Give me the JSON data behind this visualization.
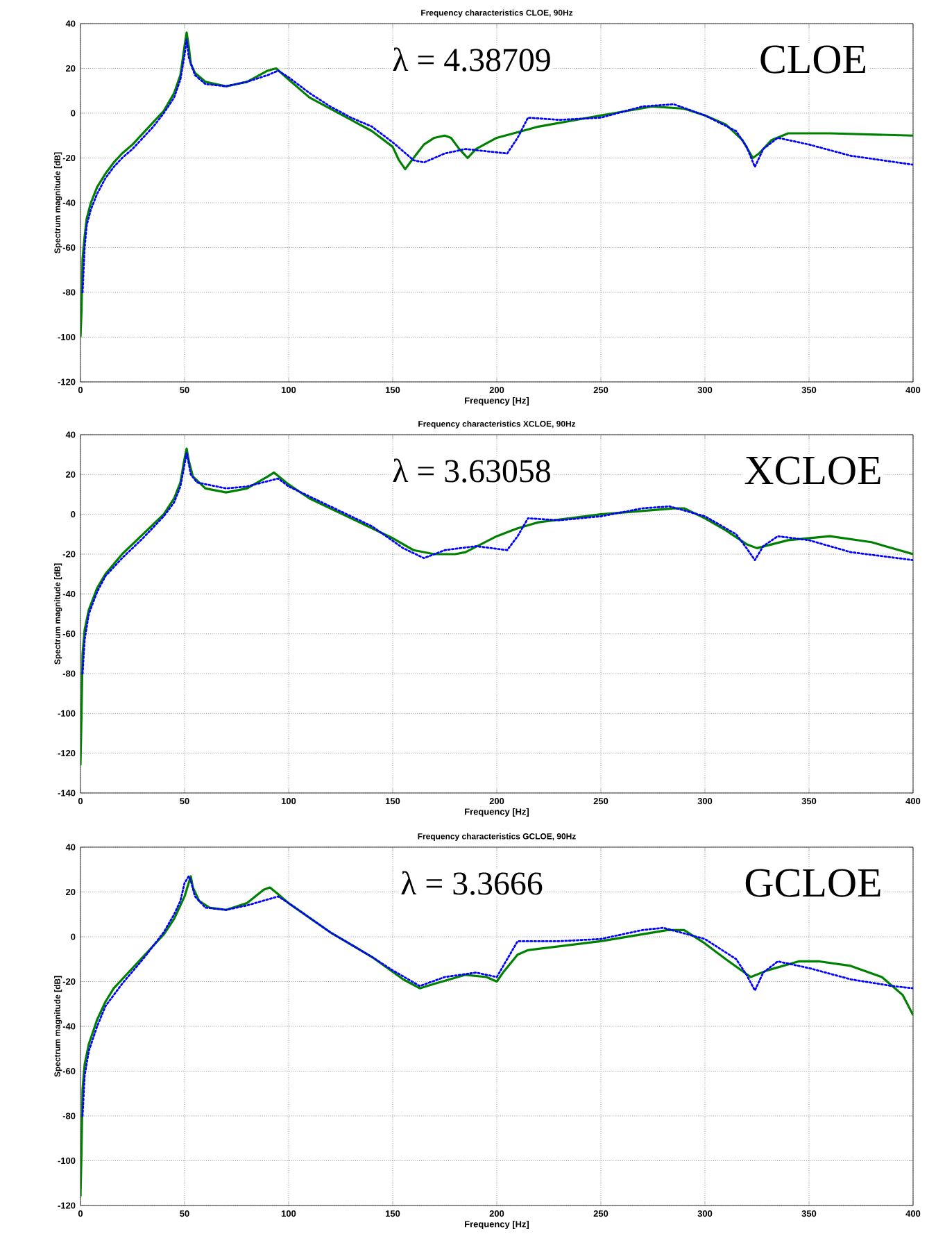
{
  "chart_data": [
    {
      "type": "line",
      "title": "Frequency characteristics CLOE, 90Hz",
      "xlabel": "Frequency [Hz]",
      "ylabel": "Spectrum magnitude [dB]",
      "annotations": [
        "λ = 4.38709",
        "CLOE"
      ],
      "xlim": [
        0,
        400
      ],
      "ylim": [
        -120,
        40
      ],
      "xticks": [
        0,
        50,
        100,
        150,
        200,
        250,
        300,
        350,
        400
      ],
      "yticks": [
        -120,
        -100,
        -80,
        -60,
        -40,
        -20,
        0,
        20,
        40
      ],
      "grid": true,
      "series": [
        {
          "color": "#0000ff",
          "line_style": "dotted",
          "x": [
            1,
            2,
            3,
            5,
            8,
            12,
            16,
            20,
            25,
            30,
            35,
            40,
            45,
            48,
            50,
            51,
            52,
            55,
            60,
            70,
            80,
            90,
            95,
            100,
            110,
            120,
            130,
            140,
            150,
            160,
            165,
            175,
            185,
            195,
            205,
            210,
            215,
            230,
            250,
            270,
            285,
            300,
            315,
            320,
            324,
            328,
            335,
            350,
            370,
            400
          ],
          "values": [
            -80,
            -60,
            -50,
            -43,
            -36,
            -29,
            -24,
            -20,
            -16,
            -11,
            -6,
            0,
            7,
            15,
            26,
            33,
            25,
            17,
            13,
            12,
            14,
            17,
            19,
            16,
            9,
            3,
            -2,
            -6,
            -13,
            -21,
            -22,
            -18,
            -16,
            -17,
            -18,
            -11,
            -2,
            -3,
            -2,
            3,
            4,
            -1,
            -8,
            -15,
            -24,
            -16,
            -11,
            -14,
            -19,
            -23
          ]
        },
        {
          "color": "#008000",
          "line_style": "solid",
          "x": [
            0,
            0.5,
            1,
            2,
            3,
            5,
            8,
            12,
            16,
            20,
            25,
            30,
            35,
            40,
            45,
            48,
            50,
            51,
            52,
            53,
            55,
            60,
            70,
            80,
            90,
            94,
            100,
            110,
            120,
            130,
            140,
            150,
            153,
            156,
            160,
            165,
            170,
            175,
            178,
            182,
            186,
            190,
            200,
            220,
            250,
            275,
            290,
            300,
            310,
            318,
            323,
            326,
            332,
            340,
            360,
            400
          ],
          "values": [
            -100,
            -88,
            -65,
            -55,
            -47,
            -40,
            -33,
            -27,
            -22,
            -18,
            -14,
            -9,
            -4,
            1,
            9,
            17,
            30,
            36,
            30,
            22,
            18,
            14,
            12,
            14,
            19,
            20,
            15,
            7,
            2,
            -3,
            -8,
            -15,
            -21,
            -25,
            -20,
            -14,
            -11,
            -10,
            -11,
            -16,
            -20,
            -16,
            -11,
            -6,
            -1,
            3,
            2,
            -1,
            -5,
            -12,
            -20,
            -18,
            -12,
            -9,
            -9,
            -10
          ]
        }
      ]
    },
    {
      "type": "line",
      "title": "Frequency characteristics XCLOE, 90Hz",
      "xlabel": "Frequency [Hz]",
      "ylabel": "Spectrum magnitude [dB]",
      "annotations": [
        "λ = 3.63058",
        "XCLOE"
      ],
      "xlim": [
        0,
        400
      ],
      "ylim": [
        -140,
        40
      ],
      "xticks": [
        0,
        50,
        100,
        150,
        200,
        250,
        300,
        350,
        400
      ],
      "yticks": [
        -140,
        -120,
        -100,
        -80,
        -60,
        -40,
        -20,
        0,
        20,
        40
      ],
      "grid": true,
      "series": [
        {
          "color": "#0000ff",
          "line_style": "dotted",
          "x": [
            1,
            2,
            4,
            8,
            12,
            20,
            30,
            40,
            45,
            48,
            50,
            51,
            53,
            56,
            70,
            80,
            95,
            100,
            120,
            140,
            155,
            165,
            175,
            190,
            205,
            210,
            215,
            230,
            250,
            270,
            283,
            300,
            315,
            320,
            324,
            328,
            335,
            350,
            370,
            400
          ],
          "values": [
            -80,
            -63,
            -50,
            -39,
            -31,
            -22,
            -12,
            -1,
            6,
            14,
            25,
            31,
            20,
            16,
            13,
            14,
            18,
            14,
            4,
            -6,
            -17,
            -22,
            -18,
            -16,
            -18,
            -11,
            -2,
            -3,
            -1,
            3,
            4,
            -1,
            -10,
            -17,
            -23,
            -16,
            -11,
            -13,
            -19,
            -23
          ]
        },
        {
          "color": "#008000",
          "line_style": "solid",
          "x": [
            0,
            0.5,
            1,
            2,
            4,
            8,
            12,
            16,
            20,
            30,
            40,
            45,
            48,
            50,
            51,
            52,
            54,
            60,
            70,
            80,
            90,
            93,
            100,
            110,
            130,
            150,
            160,
            170,
            180,
            185,
            200,
            210,
            220,
            250,
            285,
            290,
            300,
            310,
            320,
            325,
            340,
            360,
            380,
            400
          ],
          "values": [
            -126,
            -100,
            -70,
            -58,
            -48,
            -37,
            -30,
            -25,
            -20,
            -10,
            0,
            8,
            16,
            28,
            33,
            27,
            19,
            13,
            11,
            13,
            19,
            21,
            15,
            8,
            -2,
            -12,
            -18,
            -20,
            -20,
            -19,
            -11,
            -7,
            -4,
            0,
            3,
            3,
            -2,
            -8,
            -15,
            -17,
            -13,
            -11,
            -14,
            -20
          ]
        }
      ]
    },
    {
      "type": "line",
      "title": "Frequency characteristics GCLOE, 90Hz",
      "xlabel": "Frequency [Hz]",
      "ylabel": "Spectrum magnitude [dB]",
      "annotations": [
        "λ = 3.3666",
        "GCLOE"
      ],
      "xlim": [
        0,
        400
      ],
      "ylim": [
        -120,
        40
      ],
      "xticks": [
        0,
        50,
        100,
        150,
        200,
        250,
        300,
        350,
        400
      ],
      "yticks": [
        -120,
        -100,
        -80,
        -60,
        -40,
        -20,
        0,
        20,
        40
      ],
      "grid": true,
      "series": [
        {
          "color": "#0000ff",
          "line_style": "dotted",
          "x": [
            1,
            2,
            4,
            8,
            12,
            20,
            30,
            40,
            45,
            48,
            50,
            52,
            53,
            55,
            60,
            70,
            80,
            95,
            100,
            120,
            140,
            150,
            163,
            175,
            190,
            200,
            205,
            210,
            230,
            250,
            270,
            280,
            300,
            315,
            320,
            324,
            328,
            335,
            350,
            370,
            390,
            400
          ],
          "values": [
            -80,
            -62,
            -51,
            -40,
            -31,
            -21,
            -10,
            2,
            10,
            16,
            24,
            27,
            25,
            18,
            13,
            12,
            14,
            18,
            15,
            2,
            -9,
            -15,
            -22,
            -18,
            -16,
            -18,
            -10,
            -2,
            -2,
            -1,
            3,
            4,
            -1,
            -10,
            -17,
            -24,
            -16,
            -11,
            -14,
            -19,
            -22,
            -23
          ]
        },
        {
          "color": "#008000",
          "line_style": "solid",
          "x": [
            0,
            0.5,
            1,
            2,
            4,
            8,
            12,
            16,
            20,
            30,
            40,
            45,
            50,
            52,
            53,
            54,
            57,
            62,
            70,
            80,
            88,
            91,
            95,
            100,
            120,
            140,
            155,
            163,
            170,
            185,
            195,
            200,
            203,
            210,
            215,
            250,
            282,
            290,
            300,
            310,
            322,
            330,
            345,
            355,
            370,
            385,
            395,
            400
          ],
          "values": [
            -116,
            -95,
            -68,
            -57,
            -48,
            -37,
            -29,
            -23,
            -19,
            -9,
            1,
            8,
            18,
            24,
            27,
            22,
            16,
            13,
            12,
            15,
            21,
            22,
            19,
            15,
            2,
            -9,
            -19,
            -23,
            -21,
            -17,
            -18,
            -20,
            -16,
            -8,
            -6,
            -2,
            3,
            3,
            -3,
            -10,
            -18,
            -15,
            -11,
            -11,
            -13,
            -18,
            -26,
            -35
          ]
        }
      ]
    }
  ]
}
